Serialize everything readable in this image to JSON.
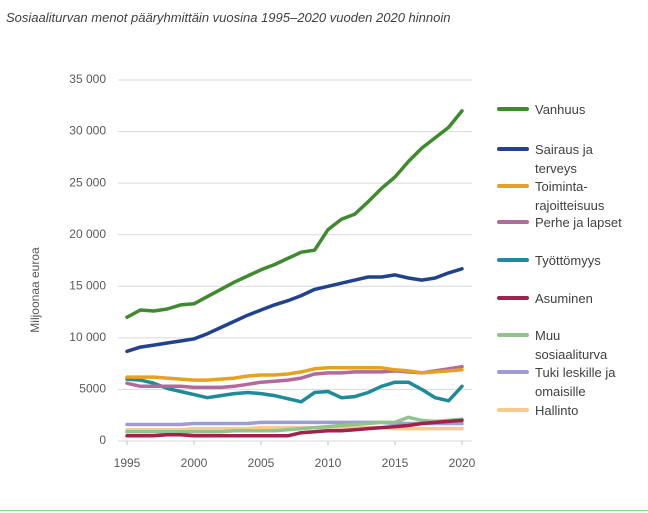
{
  "chart_data": {
    "type": "line",
    "title": "Sosiaaliturvan menot  pääryhmittäin vuosina 1995–2020 vuoden 2020 hinnoin",
    "y_label": "Miljoonaa euroa",
    "x": [
      1995,
      1996,
      1997,
      1998,
      1999,
      2000,
      2001,
      2002,
      2003,
      2004,
      2005,
      2006,
      2007,
      2008,
      2009,
      2010,
      2011,
      2012,
      2013,
      2014,
      2015,
      2016,
      2017,
      2018,
      2019,
      2020
    ],
    "xlim": [
      1995,
      2020
    ],
    "xticks": [
      1995,
      2000,
      2005,
      2010,
      2015,
      2020
    ],
    "ylim": [
      0,
      35000
    ],
    "yticks": [
      0,
      5000,
      {
        "value": 10000,
        "label": "10 000"
      },
      {
        "value": 15000,
        "label": "15 000"
      },
      {
        "value": 20000,
        "label": "20 000"
      },
      {
        "value": 25000,
        "label": "25 000"
      },
      {
        "value": 30000,
        "label": "30 000"
      },
      {
        "value": 35000,
        "label": "35 000"
      }
    ],
    "grid": true,
    "legend": "right",
    "series": [
      {
        "name": "Vanhuus",
        "color": "#3f8a2e",
        "values": [
          12000,
          12700,
          12600,
          12800,
          13200,
          13300,
          14000,
          14700,
          15400,
          16000,
          16600,
          17100,
          17700,
          18300,
          18500,
          20500,
          21500,
          22000,
          23200,
          24500,
          25600,
          27100,
          28400,
          29400,
          30400,
          32000
        ]
      },
      {
        "name": "Sairaus ja terveys",
        "color": "#21428c",
        "values": [
          8700,
          9100,
          9300,
          9500,
          9700,
          9900,
          10400,
          11000,
          11600,
          12200,
          12700,
          13200,
          13600,
          14100,
          14700,
          15000,
          15300,
          15600,
          15900,
          15900,
          16100,
          15800,
          15600,
          15800,
          16300,
          16700
        ]
      },
      {
        "name": "Toiminta-rajoitteisuus",
        "color": "#e5a126",
        "values": [
          6200,
          6200,
          6200,
          6100,
          6000,
          5900,
          5900,
          6000,
          6100,
          6300,
          6400,
          6400,
          6500,
          6700,
          7000,
          7100,
          7100,
          7100,
          7100,
          7100,
          6900,
          6800,
          6600,
          6700,
          6800,
          6900
        ]
      },
      {
        "name": "Perhe ja lapset",
        "color": "#b06b9b",
        "values": [
          5600,
          5300,
          5300,
          5300,
          5300,
          5200,
          5200,
          5200,
          5300,
          5500,
          5700,
          5800,
          5900,
          6100,
          6500,
          6600,
          6600,
          6700,
          6700,
          6700,
          6800,
          6700,
          6600,
          6800,
          7000,
          7200
        ]
      },
      {
        "name": "Työttömyys",
        "color": "#1e8a9a",
        "values": [
          6000,
          5900,
          5600,
          5100,
          4800,
          4500,
          4200,
          4400,
          4600,
          4700,
          4600,
          4400,
          4100,
          3800,
          4700,
          4800,
          4200,
          4300,
          4700,
          5300,
          5700,
          5700,
          5000,
          4200,
          3900,
          5300
        ]
      },
      {
        "name": "Asuminen",
        "color": "#a0224d",
        "values": [
          500,
          500,
          500,
          600,
          600,
          500,
          500,
          500,
          500,
          500,
          500,
          500,
          500,
          800,
          900,
          1000,
          1000,
          1100,
          1200,
          1300,
          1400,
          1500,
          1700,
          1800,
          1900,
          2000
        ]
      },
      {
        "name": "Muu sosiaaliturva",
        "color": "#93c38c",
        "values": [
          900,
          900,
          900,
          900,
          900,
          900,
          900,
          900,
          1000,
          1000,
          1000,
          1000,
          1100,
          1200,
          1300,
          1400,
          1500,
          1600,
          1700,
          1800,
          1800,
          2300,
          2000,
          1900,
          2000,
          2100
        ]
      },
      {
        "name": "Tuki leskille ja omaisille",
        "color": "#9d9dd2",
        "values": [
          1600,
          1600,
          1600,
          1600,
          1600,
          1700,
          1700,
          1700,
          1700,
          1700,
          1800,
          1800,
          1800,
          1800,
          1800,
          1800,
          1800,
          1800,
          1800,
          1800,
          1700,
          1700,
          1700,
          1700,
          1700,
          1700
        ]
      },
      {
        "name": "Hallinto",
        "color": "#f6cb8d",
        "values": [
          1100,
          1100,
          1100,
          1100,
          1100,
          1200,
          1200,
          1200,
          1200,
          1200,
          1300,
          1300,
          1300,
          1300,
          1300,
          1300,
          1300,
          1300,
          1300,
          1300,
          1200,
          1200,
          1200,
          1200,
          1200,
          1200
        ]
      }
    ]
  }
}
